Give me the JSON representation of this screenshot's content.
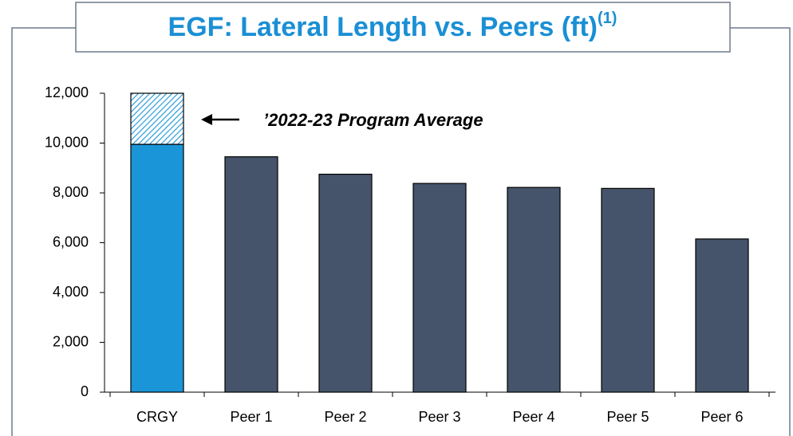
{
  "chart_data": {
    "type": "stacked_bar",
    "title": "EGF: Lateral Length vs. Peers (ft)",
    "title_superscript": "(1)",
    "annotation": "’2022-23 Program Average",
    "categories": [
      "CRGY",
      "Peer 1",
      "Peer 2",
      "Peer 3",
      "Peer 4",
      "Peer 5",
      "Peer 6"
    ],
    "series": [
      {
        "colors": [
          "#1a95d8",
          "#45546b",
          "#45546b",
          "#45546b",
          "#45546b",
          "#45546b",
          "#45546b"
        ],
        "values": [
          9950,
          9450,
          8750,
          8380,
          8220,
          8180,
          6150
        ]
      },
      {
        "color": "#1a95d8",
        "pattern": "hatch",
        "values": [
          2050,
          null,
          null,
          null,
          null,
          null,
          null
        ]
      }
    ],
    "ylim": [
      0,
      12000
    ],
    "yticks": [
      0,
      {
        "value": 2000,
        "label": "2,000"
      },
      {
        "value": 4000,
        "label": "4,000"
      },
      {
        "value": 6000,
        "label": "6,000"
      },
      {
        "value": 8000,
        "label": "8,000"
      },
      {
        "value": 10000,
        "label": "10,000"
      },
      {
        "value": 12000,
        "label": "12,000"
      }
    ],
    "grid": false
  }
}
